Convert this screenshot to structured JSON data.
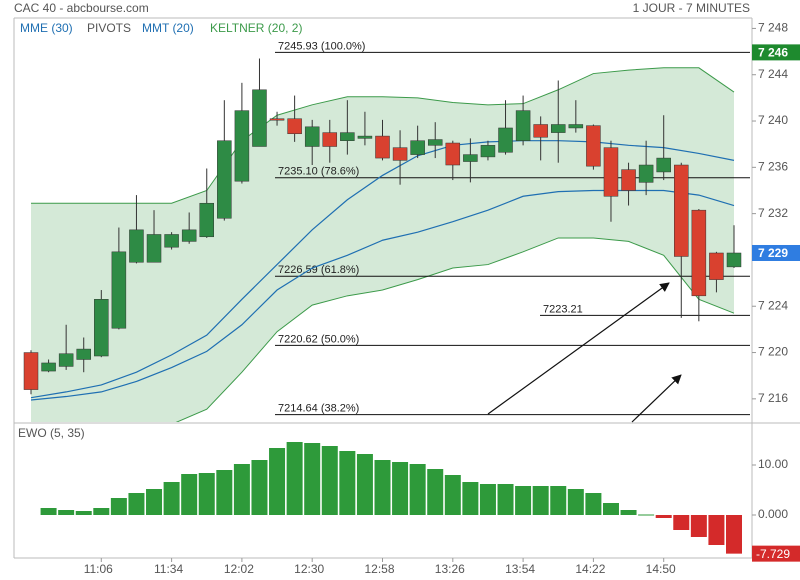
{
  "chart_data": [
    {
      "type": "candlestick",
      "title": "CAC 40 - abcbourse.com",
      "subtitle": "1 JOUR - 7 MINUTES",
      "categories": [
        null,
        null,
        null,
        null,
        "11:06",
        null,
        null,
        null,
        "11:34",
        null,
        null,
        null,
        "12:02",
        null,
        null,
        null,
        "12:30",
        null,
        null,
        null,
        "12:58",
        null,
        null,
        null,
        "13:26",
        null,
        null,
        null,
        "13:54",
        null,
        null,
        null,
        "14:22",
        null,
        null,
        null,
        "14:50",
        null,
        null,
        null,
        null
      ],
      "open": [
        7220.0,
        7218.4,
        7218.8,
        7219.4,
        7219.7,
        7222.1,
        7227.8,
        7227.8,
        7229.1,
        7229.6,
        7230.0,
        7231.6,
        7234.8,
        7237.8,
        7240.2,
        7240.2,
        7237.8,
        7239.0,
        7238.3,
        7238.5,
        7238.7,
        7237.7,
        7237.1,
        7237.9,
        7238.1,
        7236.5,
        7236.9,
        7237.3,
        7238.3,
        7239.7,
        7239.0,
        7239.4,
        7239.6,
        7237.7,
        7235.8,
        7234.7,
        7235.6,
        7236.2,
        7232.3,
        7228.6,
        7227.4
      ],
      "high": [
        7220.2,
        7219.4,
        7222.4,
        7221.3,
        7225.4,
        7230.8,
        7233.6,
        7232.3,
        7230.4,
        7232.1,
        7235.9,
        7241.8,
        7243.3,
        7245.4,
        7240.8,
        7242.2,
        7240.1,
        7240.1,
        7241.8,
        7240.8,
        7240.1,
        7239.2,
        7239.6,
        7239.9,
        7238.3,
        7238.5,
        7238.3,
        7241.8,
        7242.2,
        7240.4,
        7243.5,
        7241.8,
        7239.7,
        7238.3,
        7236.4,
        7238.3,
        7240.5,
        7236.4,
        7232.4,
        7228.7,
        7231.0
      ],
      "low": [
        7216.4,
        7218.3,
        7218.5,
        7218.3,
        7219.6,
        7222.0,
        7227.7,
        7227.8,
        7228.9,
        7229.4,
        7229.9,
        7231.4,
        7234.6,
        7237.8,
        7239.6,
        7238.2,
        7236.2,
        7236.4,
        7237.1,
        7237.9,
        7236.6,
        7234.5,
        7236.8,
        7236.8,
        7234.9,
        7234.7,
        7236.6,
        7237.1,
        7237.9,
        7236.6,
        7236.4,
        7239.0,
        7235.8,
        7231.3,
        7232.7,
        7233.6,
        7234.9,
        7223.0,
        7222.7,
        7225.2,
        7227.3
      ],
      "close": [
        7216.8,
        7219.1,
        7219.9,
        7220.3,
        7224.6,
        7228.7,
        7230.6,
        7230.2,
        7230.2,
        7230.6,
        7232.9,
        7238.3,
        7240.9,
        7242.7,
        7240.1,
        7238.9,
        7239.5,
        7237.8,
        7239.0,
        7238.7,
        7236.8,
        7236.6,
        7238.3,
        7238.4,
        7236.2,
        7237.1,
        7237.9,
        7239.4,
        7240.9,
        7238.6,
        7239.7,
        7239.7,
        7236.1,
        7233.5,
        7234.0,
        7236.2,
        7236.8,
        7228.3,
        7224.9,
        7226.3,
        7228.6
      ],
      "up_color": "#2e8b45",
      "down_color": "#d9412f",
      "lines": [
        {
          "name": "MME (30)",
          "color": "#1f6fb2",
          "x": [
            0,
            2,
            4,
            6,
            8,
            10,
            12,
            14,
            16,
            18,
            20,
            22,
            24,
            26,
            28,
            30,
            32,
            34,
            36,
            38,
            40
          ],
          "values": [
            7215.9,
            7216.2,
            7216.6,
            7217.5,
            7218.7,
            7220.1,
            7222.4,
            7225.4,
            7227.3,
            7228.4,
            7229.7,
            7230.4,
            7231.3,
            7232.3,
            7233.5,
            7233.9,
            7234.0,
            7234.0,
            7234.0,
            7233.6,
            7232.7
          ]
        },
        {
          "name": "MMT (20)",
          "color": "#1f6fb2",
          "x": [
            0,
            2,
            4,
            6,
            8,
            10,
            12,
            14,
            16,
            18,
            20,
            22,
            24,
            26,
            28,
            30,
            32,
            34,
            36,
            38,
            40
          ],
          "values": [
            7216.1,
            7216.6,
            7217.2,
            7218.3,
            7219.8,
            7221.5,
            7224.6,
            7227.6,
            7230.6,
            7233.2,
            7235.3,
            7237.0,
            7237.9,
            7238.2,
            7238.3,
            7238.3,
            7238.2,
            7237.9,
            7237.7,
            7237.2,
            7236.6
          ]
        }
      ],
      "band": {
        "name": "KELTNER (20, 2)",
        "color": "#3c9a4a",
        "x": [
          0,
          2,
          4,
          6,
          8,
          10,
          12,
          14,
          16,
          18,
          20,
          22,
          24,
          26,
          28,
          30,
          32,
          34,
          36,
          38,
          40
        ],
        "upper": [
          7232.9,
          7232.9,
          7232.9,
          7232.9,
          7232.9,
          7234.0,
          7238.3,
          7240.5,
          7241.4,
          7242.1,
          7242.1,
          7242.0,
          7241.6,
          7241.4,
          7241.5,
          7242.7,
          7244.1,
          7244.4,
          7244.6,
          7244.6,
          7242.5
        ],
        "lower": [
          7209.9,
          7210.8,
          7211.6,
          7212.5,
          7213.8,
          7215.1,
          7218.3,
          7221.8,
          7224.1,
          7224.9,
          7225.4,
          7226.3,
          7227.3,
          7227.6,
          7228.7,
          7229.9,
          7229.9,
          7229.6,
          7228.4,
          7224.6,
          7223.4
        ]
      },
      "pivots": {
        "name": "PIVOTS",
        "items": [
          {
            "value": 7245.93,
            "label": "7245.93  (100.0%)"
          },
          {
            "value": 7235.1,
            "label": "7235.10  (78.6%)"
          },
          {
            "value": 7226.59,
            "label": "7226.59  (61.8%)"
          },
          {
            "value": 7223.21,
            "label": "7223.21"
          },
          {
            "value": 7220.62,
            "label": "7220.62  (50.0%)"
          },
          {
            "value": 7214.64,
            "label": "7214.64  (38.2%)"
          }
        ]
      },
      "pivot_high_label": {
        "value": 7245.93,
        "label": "7 246"
      },
      "last_label": {
        "value": 7228.6,
        "label": "7 229"
      },
      "ylim": [
        7214,
        7248.9
      ],
      "yticks": [
        {
          "value": 7248,
          "label": "7 248"
        },
        {
          "value": 7244,
          "label": "7 244"
        },
        {
          "value": 7240,
          "label": "7 240"
        },
        {
          "value": 7236,
          "label": "7 236"
        },
        {
          "value": 7232,
          "label": "7 232"
        },
        {
          "value": 7224,
          "label": "7 224"
        },
        {
          "value": 7220,
          "label": "7 220"
        },
        {
          "value": 7216,
          "label": "7 216"
        }
      ]
    },
    {
      "type": "bar",
      "title": "EWO (5, 35)",
      "values": [
        null,
        1.4,
        1.0,
        0.8,
        1.4,
        3.4,
        4.4,
        5.2,
        6.6,
        8.2,
        8.4,
        9.0,
        10.2,
        11.0,
        13.4,
        14.6,
        14.4,
        13.8,
        12.8,
        12.2,
        11.0,
        10.6,
        10.2,
        9.2,
        8.0,
        6.6,
        6.2,
        6.2,
        5.8,
        5.8,
        5.8,
        5.2,
        4.4,
        2.4,
        1.0,
        0.1,
        -0.6,
        -3.0,
        -4.4,
        -6.0,
        -7.729
      ],
      "up_color": "#2e9a3a",
      "down_color": "#d42a2a",
      "last_label": {
        "value": -7.729,
        "label": "-7.729"
      },
      "ylim": [
        -8.6,
        18
      ],
      "yticks": [
        {
          "value": 10,
          "label": "10.00"
        },
        {
          "value": 0,
          "label": "0.000"
        }
      ]
    }
  ]
}
